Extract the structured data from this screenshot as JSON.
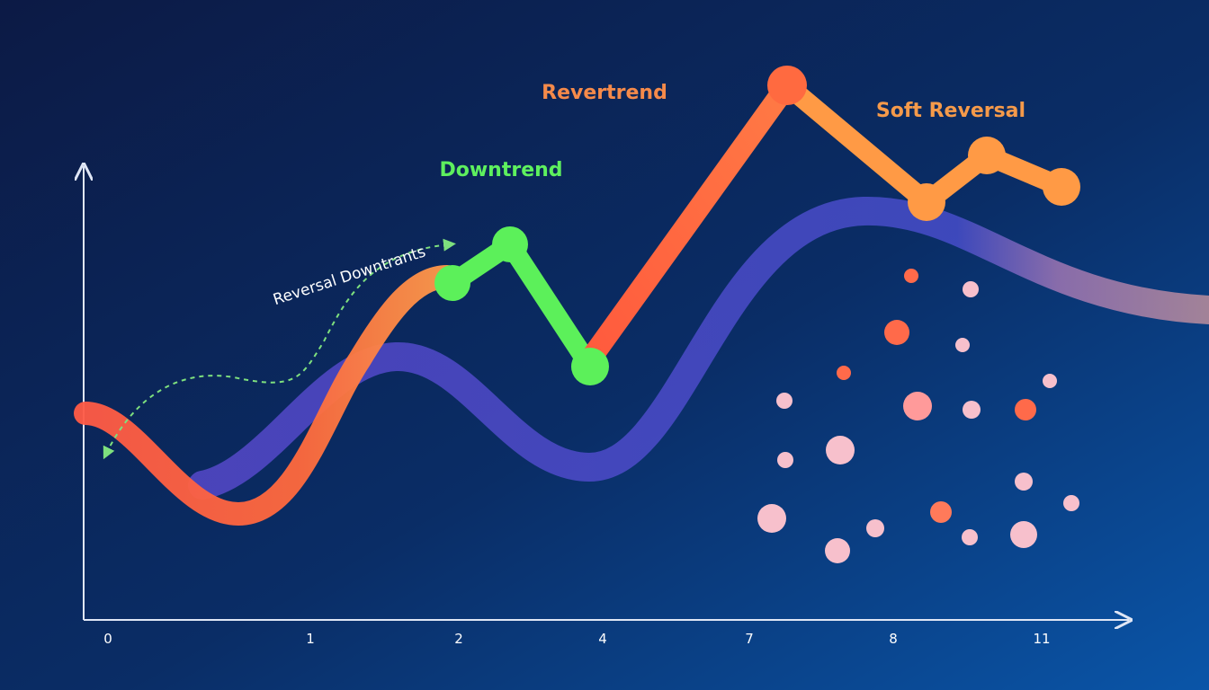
{
  "annotations": {
    "revertrend": "Revertrend",
    "soft_reversal": "Soft Reversal",
    "downtrend": "Downtrend",
    "reversal_downtrants": "Reversal Downtrants"
  },
  "x_axis": {
    "tick_labels": [
      "0",
      "1",
      "2",
      "4",
      "7",
      "8",
      "11"
    ]
  }
}
